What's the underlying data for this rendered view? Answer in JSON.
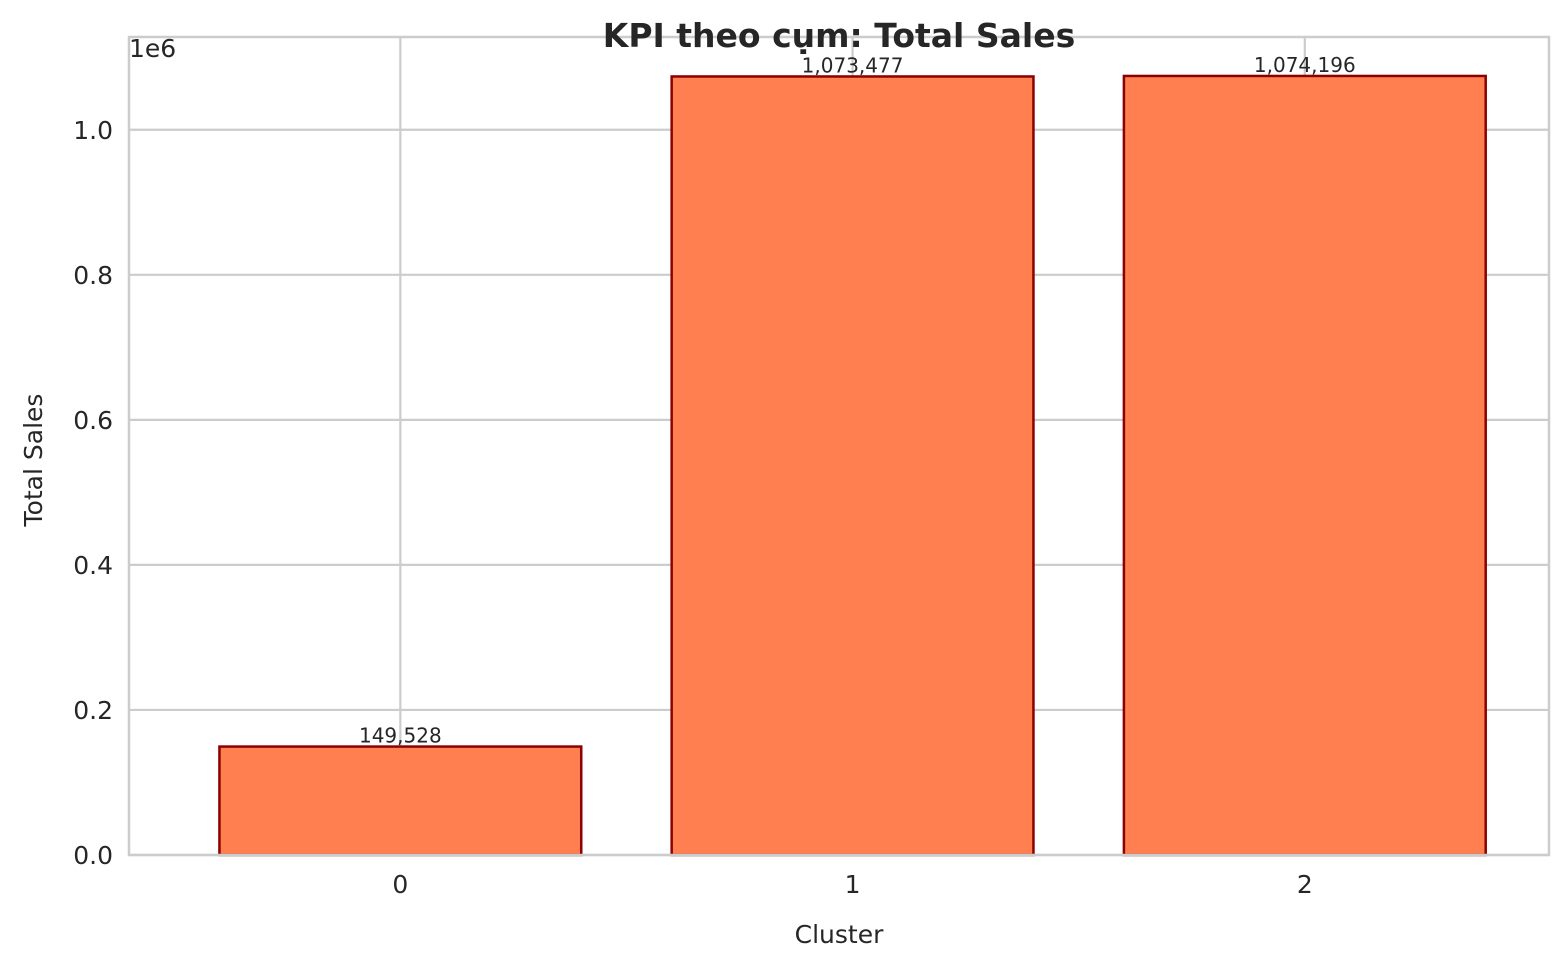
{
  "chart_data": {
    "type": "bar",
    "title": "KPI theo cụm: Total Sales",
    "xlabel": "Cluster",
    "ylabel": "Total Sales",
    "categories": [
      "0",
      "1",
      "2"
    ],
    "values": [
      149528,
      1073477,
      1074196
    ],
    "data_labels": [
      "149,528",
      "1,073,477",
      "1,074,196"
    ],
    "ylim": [
      0,
      1127905
    ],
    "y_ticks": [
      0,
      200000,
      400000,
      600000,
      800000,
      1000000
    ],
    "y_tick_labels": [
      "0.0",
      "0.2",
      "0.4",
      "0.6",
      "0.8",
      "1.0"
    ],
    "y_offset_label": "1e6",
    "grid": true,
    "bar_color": "#ff7f50",
    "bar_edge_color": "#8b0000",
    "grid_color": "#cccccc",
    "spine_color": "#cccccc"
  }
}
